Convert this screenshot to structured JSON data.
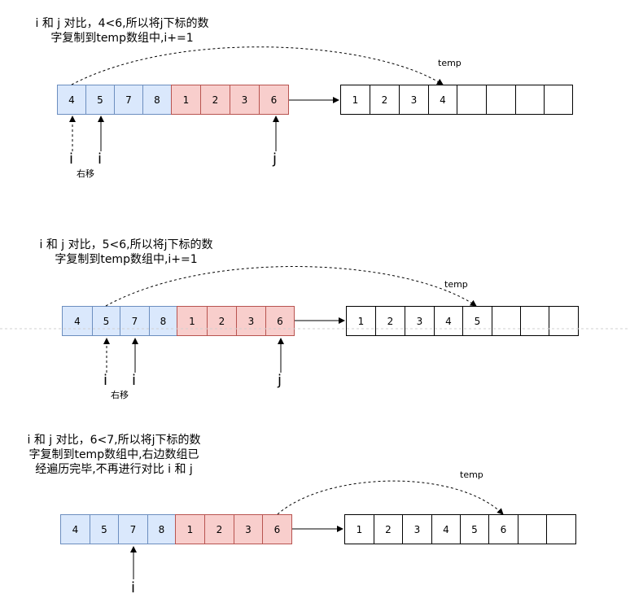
{
  "steps": [
    {
      "caption_line1": "i 和 j 对比，4<6,所以将j下标的数",
      "caption_line2": "字复制到temp数组中,i+=1",
      "left_values": [
        "4",
        "5",
        "7",
        "8"
      ],
      "right_values": [
        "1",
        "2",
        "3",
        "6"
      ],
      "temp_values": [
        "1",
        "2",
        "3",
        "4",
        "",
        "",
        "",
        ""
      ],
      "temp_label": "temp",
      "pointer_i_old": "i",
      "pointer_i_new": "i",
      "pointer_j": "j",
      "move_label": "右移"
    },
    {
      "caption_line1": "i 和 j 对比，5<6,所以将j下标的数",
      "caption_line2": "字复制到temp数组中,i+=1",
      "left_values": [
        "4",
        "5",
        "7",
        "8"
      ],
      "right_values": [
        "1",
        "2",
        "3",
        "6"
      ],
      "temp_values": [
        "1",
        "2",
        "3",
        "4",
        "5",
        "",
        "",
        ""
      ],
      "temp_label": "temp",
      "pointer_i_old": "i",
      "pointer_i_new": "i",
      "pointer_j": "j",
      "move_label": "右移"
    },
    {
      "caption_line1": "i 和 j 对比，6<7,所以将j下标的数",
      "caption_line2": "字复制到temp数组中,右边数组已",
      "caption_line3": "经遍历完毕,不再进行对比 i 和 j",
      "left_values": [
        "4",
        "5",
        "7",
        "8"
      ],
      "right_values": [
        "1",
        "2",
        "3",
        "6"
      ],
      "temp_values": [
        "1",
        "2",
        "3",
        "4",
        "5",
        "6",
        "",
        ""
      ],
      "temp_label": "temp",
      "pointer_i": "i"
    }
  ]
}
